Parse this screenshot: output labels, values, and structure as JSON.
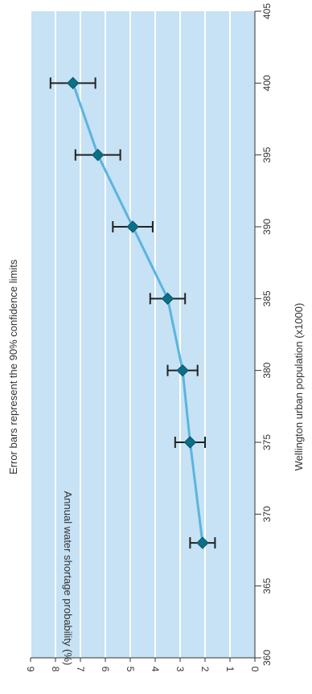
{
  "chart_data": {
    "type": "line",
    "title": "",
    "note": "Error bars represent the 90% confidence limits",
    "xlabel": "Wellington urban population (x1000)",
    "ylabel": "Annual water shortage probability (%)",
    "xlim": [
      360,
      405
    ],
    "ylim": [
      0,
      9
    ],
    "x_ticks": [
      360,
      365,
      370,
      375,
      380,
      385,
      390,
      395,
      400,
      405
    ],
    "y_ticks": [
      0,
      1,
      2,
      3,
      4,
      5,
      6,
      7,
      8,
      9
    ],
    "grid": true,
    "orientation": "rotated-90-clockwise",
    "series": [
      {
        "x": [
          368,
          375,
          380,
          385,
          390,
          395,
          400
        ],
        "y": [
          2.1,
          2.6,
          2.9,
          3.5,
          4.9,
          6.3,
          7.3
        ],
        "err": [
          0.5,
          0.6,
          0.6,
          0.7,
          0.8,
          0.9,
          0.9
        ]
      }
    ],
    "colors": {
      "plot_bg": "#c6e2f4",
      "grid": "#ffffff",
      "line": "#5bb4e0",
      "marker": "#0d6f86",
      "error_bar": "#222222",
      "axis": "#333333"
    }
  }
}
